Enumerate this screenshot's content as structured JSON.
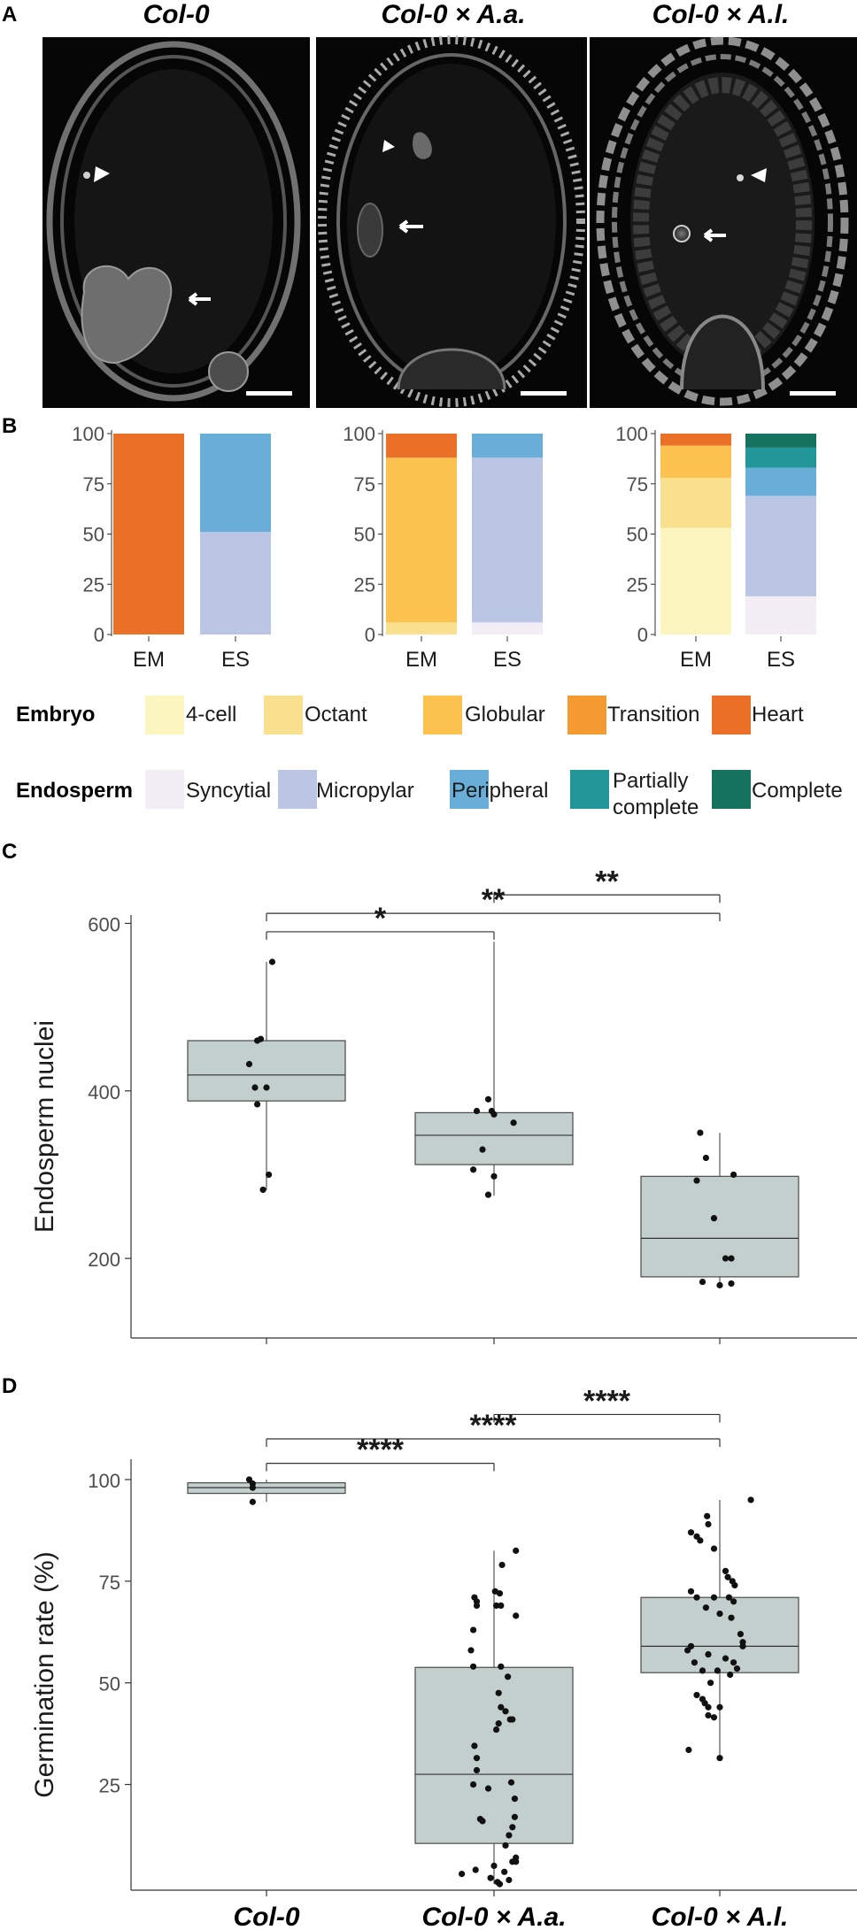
{
  "panel_labels": [
    "A",
    "B",
    "C",
    "D"
  ],
  "panelA": {
    "titles": [
      "Col-0",
      "Col-0 × A.a.",
      "Col-0 × A.l."
    ]
  },
  "colors": {
    "4-cell": "#fbf5c0",
    "Octant": "#f8e08f",
    "Globular": "#fcc24f",
    "Transition": "#f59a30",
    "Heart": "#ec7128",
    "Syncytial": "#f3eef6",
    "Micropylar": "#bac6e3",
    "Peripheral": "#69aed8",
    "Partially complete": "#21979a",
    "Complete": "#15725f",
    "box_fill": "#c3cfcd"
  },
  "legend": {
    "embryo_title": "Embryo",
    "embryo_items": [
      "4-cell",
      "Octant",
      "Globular",
      "Transition",
      "Heart"
    ],
    "endosperm_title": "Endosperm",
    "endosperm_items": [
      "Syncytial",
      "Micropylar",
      "Peripheral",
      "Partially complete",
      "Complete"
    ],
    "partially_line1": "Partially",
    "partially_line2": "complete"
  },
  "chart_data": [
    {
      "id": "B",
      "type": "bar",
      "stacked": true,
      "categories": [
        "EM",
        "ES"
      ],
      "yticks": [
        0,
        25,
        50,
        75,
        100
      ],
      "ylim": [
        0,
        100
      ],
      "groups": [
        {
          "name": "Col-0",
          "EM": [
            {
              "stage": "Heart",
              "value": 100
            }
          ],
          "ES": [
            {
              "stage": "Micropylar",
              "value": 51
            },
            {
              "stage": "Peripheral",
              "value": 49
            }
          ]
        },
        {
          "name": "Col-0 × A.a.",
          "EM": [
            {
              "stage": "Octant",
              "value": 6
            },
            {
              "stage": "Globular",
              "value": 82
            },
            {
              "stage": "Heart",
              "value": 12
            }
          ],
          "ES": [
            {
              "stage": "Syncytial",
              "value": 6
            },
            {
              "stage": "Micropylar",
              "value": 82
            },
            {
              "stage": "Peripheral",
              "value": 12
            }
          ]
        },
        {
          "name": "Col-0 × A.l.",
          "EM": [
            {
              "stage": "4-cell",
              "value": 53
            },
            {
              "stage": "Octant",
              "value": 25
            },
            {
              "stage": "Globular",
              "value": 16
            },
            {
              "stage": "Heart",
              "value": 6
            }
          ],
          "ES": [
            {
              "stage": "Syncytial",
              "value": 19
            },
            {
              "stage": "Micropylar",
              "value": 50
            },
            {
              "stage": "Peripheral",
              "value": 14
            },
            {
              "stage": "Partially complete",
              "value": 10
            },
            {
              "stage": "Complete",
              "value": 7
            }
          ]
        }
      ]
    },
    {
      "id": "C",
      "type": "box",
      "ylabel": "Endosperm nuclei",
      "yticks": [
        200,
        400,
        600
      ],
      "ylim": [
        105,
        610
      ],
      "categories": [
        "Col-0",
        "Col-0 × A.a.",
        "Col-0 × A.l."
      ],
      "boxes": [
        {
          "q1": 388,
          "median": 419,
          "q3": 460,
          "whisker_low": 282,
          "whisker_high": 554
        },
        {
          "q1": 312,
          "median": 347,
          "q3": 374,
          "whisker_low": 275,
          "whisker_high": 578
        },
        {
          "q1": 178,
          "median": 224,
          "q3": 298,
          "whisker_low": 168,
          "whisker_high": 350
        }
      ],
      "points": [
        [
          [
            0.05,
            554
          ],
          [
            -0.08,
            460
          ],
          [
            -0.05,
            462
          ],
          [
            -0.15,
            432
          ],
          [
            -0.1,
            404
          ],
          [
            0.0,
            404
          ],
          [
            -0.08,
            384
          ],
          [
            0.02,
            300
          ],
          [
            -0.03,
            282
          ]
        ],
        [
          [
            -0.05,
            390
          ],
          [
            -0.15,
            376
          ],
          [
            -0.02,
            376
          ],
          [
            0.0,
            372
          ],
          [
            0.17,
            362
          ],
          [
            -0.1,
            330
          ],
          [
            -0.18,
            306
          ],
          [
            0.0,
            298
          ],
          [
            -0.05,
            276
          ]
        ],
        [
          [
            -0.17,
            350
          ],
          [
            -0.12,
            320
          ],
          [
            0.12,
            300
          ],
          [
            -0.2,
            293
          ],
          [
            -0.05,
            248
          ],
          [
            0.05,
            200
          ],
          [
            0.1,
            200
          ],
          [
            -0.15,
            172
          ],
          [
            0.1,
            170
          ],
          [
            0.0,
            168
          ]
        ]
      ],
      "significance": [
        {
          "from": 1,
          "to": 2,
          "label": "**",
          "y": 634
        },
        {
          "from": 0,
          "to": 2,
          "label": "**",
          "y": 612
        },
        {
          "from": 0,
          "to": 1,
          "label": "*",
          "y": 590
        }
      ]
    },
    {
      "id": "D",
      "type": "box",
      "ylabel": "Germination rate (%)",
      "yticks": [
        25,
        50,
        75,
        100
      ],
      "ylim": [
        -1,
        105
      ],
      "categories": [
        "Col-0",
        "Col-0 × A.a.",
        "Col-0 × A.l."
      ],
      "boxes": [
        {
          "q1": 96.6,
          "median": 98,
          "q3": 99.2,
          "whisker_low": 94.5,
          "whisker_high": 100
        },
        {
          "q1": 10.5,
          "median": 27.5,
          "q3": 53.8,
          "whisker_low": 0.5,
          "whisker_high": 82.5
        },
        {
          "q1": 52.5,
          "median": 59,
          "q3": 71,
          "whisker_low": 31.5,
          "whisker_high": 95
        }
      ],
      "points": [
        [
          [
            -0.15,
            100
          ],
          [
            -0.12,
            99
          ],
          [
            -0.12,
            98
          ],
          [
            -0.12,
            94.5
          ]
        ],
        [
          [
            0.19,
            82.5
          ],
          [
            0.07,
            79
          ],
          [
            -0.17,
            71
          ],
          [
            -0.15,
            70
          ],
          [
            -0.15,
            69
          ],
          [
            0.01,
            72.5
          ],
          [
            0.05,
            72
          ],
          [
            0.02,
            69
          ],
          [
            0.06,
            69
          ],
          [
            0.19,
            66.5
          ],
          [
            -0.18,
            63
          ],
          [
            -0.2,
            58
          ],
          [
            -0.18,
            54
          ],
          [
            0.06,
            54
          ],
          [
            0.12,
            51.5
          ],
          [
            0.04,
            47.5
          ],
          [
            0.06,
            44
          ],
          [
            0.1,
            43
          ],
          [
            0.14,
            41
          ],
          [
            0.16,
            41
          ],
          [
            -0.17,
            34.5
          ],
          [
            0.04,
            40
          ],
          [
            0.02,
            38.5
          ],
          [
            -0.15,
            31.5
          ],
          [
            -0.15,
            28.5
          ],
          [
            -0.18,
            25
          ],
          [
            -0.05,
            24
          ],
          [
            0.15,
            25.5
          ],
          [
            0.18,
            21.5
          ],
          [
            0.18,
            17
          ],
          [
            0.16,
            14.5
          ],
          [
            0.13,
            12.5
          ],
          [
            -0.12,
            16.5
          ],
          [
            -0.1,
            16
          ],
          [
            0.1,
            10
          ],
          [
            0.19,
            7
          ],
          [
            0.16,
            6
          ],
          [
            0.19,
            6
          ],
          [
            -0.28,
            3
          ],
          [
            -0.16,
            4
          ],
          [
            0.0,
            5
          ],
          [
            0.09,
            3.5
          ],
          [
            -0.03,
            2
          ],
          [
            0.03,
            1
          ],
          [
            0.13,
            1.5
          ],
          [
            0.05,
            0.5
          ]
        ],
        [
          [
            -0.25,
            87
          ],
          [
            -0.2,
            86
          ],
          [
            -0.11,
            91
          ],
          [
            -0.1,
            89
          ],
          [
            0.27,
            95
          ],
          [
            -0.17,
            85
          ],
          [
            -0.05,
            83
          ],
          [
            0.13,
            74
          ],
          [
            0.11,
            75
          ],
          [
            0.05,
            77.5
          ],
          [
            0.07,
            76
          ],
          [
            -0.25,
            72.5
          ],
          [
            -0.2,
            71
          ],
          [
            -0.05,
            71
          ],
          [
            0.08,
            71
          ],
          [
            0.12,
            70
          ],
          [
            -0.12,
            68.5
          ],
          [
            0.0,
            67
          ],
          [
            0.1,
            66
          ],
          [
            0.18,
            62
          ],
          [
            0.2,
            60
          ],
          [
            0.2,
            59
          ],
          [
            -0.25,
            59
          ],
          [
            -0.28,
            58
          ],
          [
            -0.22,
            55
          ],
          [
            -0.1,
            57
          ],
          [
            0.05,
            56
          ],
          [
            0.12,
            55
          ],
          [
            0.15,
            53.5
          ],
          [
            -0.15,
            53
          ],
          [
            -0.02,
            53
          ],
          [
            0.09,
            52
          ],
          [
            -0.08,
            50
          ],
          [
            -0.2,
            47
          ],
          [
            -0.15,
            46
          ],
          [
            -0.13,
            45
          ],
          [
            -0.1,
            44
          ],
          [
            0.0,
            44
          ],
          [
            -0.1,
            42
          ],
          [
            -0.05,
            41.5
          ],
          [
            -0.27,
            33.5
          ],
          [
            0.0,
            31.5
          ]
        ]
      ],
      "significance": [
        {
          "from": 1,
          "to": 2,
          "label": "****",
          "y": 116
        },
        {
          "from": 0,
          "to": 2,
          "label": "****",
          "y": 110
        },
        {
          "from": 0,
          "to": 1,
          "label": "****",
          "y": 104
        }
      ],
      "xcategory_labels": [
        "Col-0",
        "Col-0 × A.a.",
        "Col-0 × A.l."
      ]
    }
  ]
}
